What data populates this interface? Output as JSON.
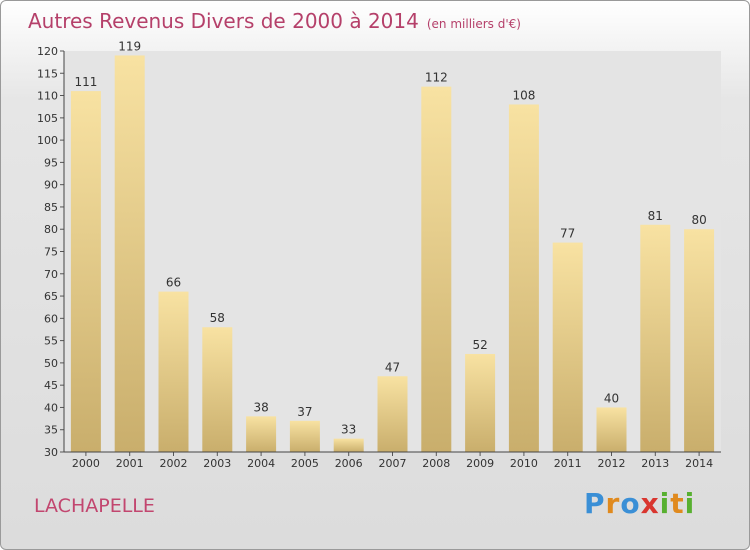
{
  "title": "Autres Revenus Divers de 2000 à 2014",
  "subtitle": "(en milliers d'€)",
  "commune": "LACHAPELLE",
  "brand": {
    "text": "Proxiti",
    "colors": [
      "#3a8fd6",
      "#e08a1e",
      "#58b030",
      "#d9362f"
    ]
  },
  "colors": {
    "bar_light": "#f8e2a2",
    "bar_dark": "#c9ae6c",
    "title": "#b5406a"
  },
  "chart_data": {
    "type": "bar",
    "categories": [
      "2000",
      "2001",
      "2002",
      "2003",
      "2004",
      "2005",
      "2006",
      "2007",
      "2008",
      "2009",
      "2010",
      "2011",
      "2012",
      "2013",
      "2014"
    ],
    "values": [
      111,
      119,
      66,
      58,
      38,
      37,
      33,
      47,
      112,
      52,
      108,
      77,
      40,
      81,
      80
    ],
    "data_labels": [
      "111",
      "119",
      "66",
      "58",
      "38",
      "37",
      "33",
      "47",
      "112",
      "52",
      "108",
      "77",
      "40",
      "81",
      "80"
    ],
    "y_ticks": [
      "30",
      "35",
      "40",
      "45",
      "50",
      "55",
      "60",
      "65",
      "70",
      "75",
      "80",
      "85",
      "90",
      "95",
      "100",
      "105",
      "110",
      "115",
      "120"
    ],
    "ylim": [
      30,
      120
    ],
    "grid": false,
    "xlabel": "",
    "ylabel": ""
  }
}
